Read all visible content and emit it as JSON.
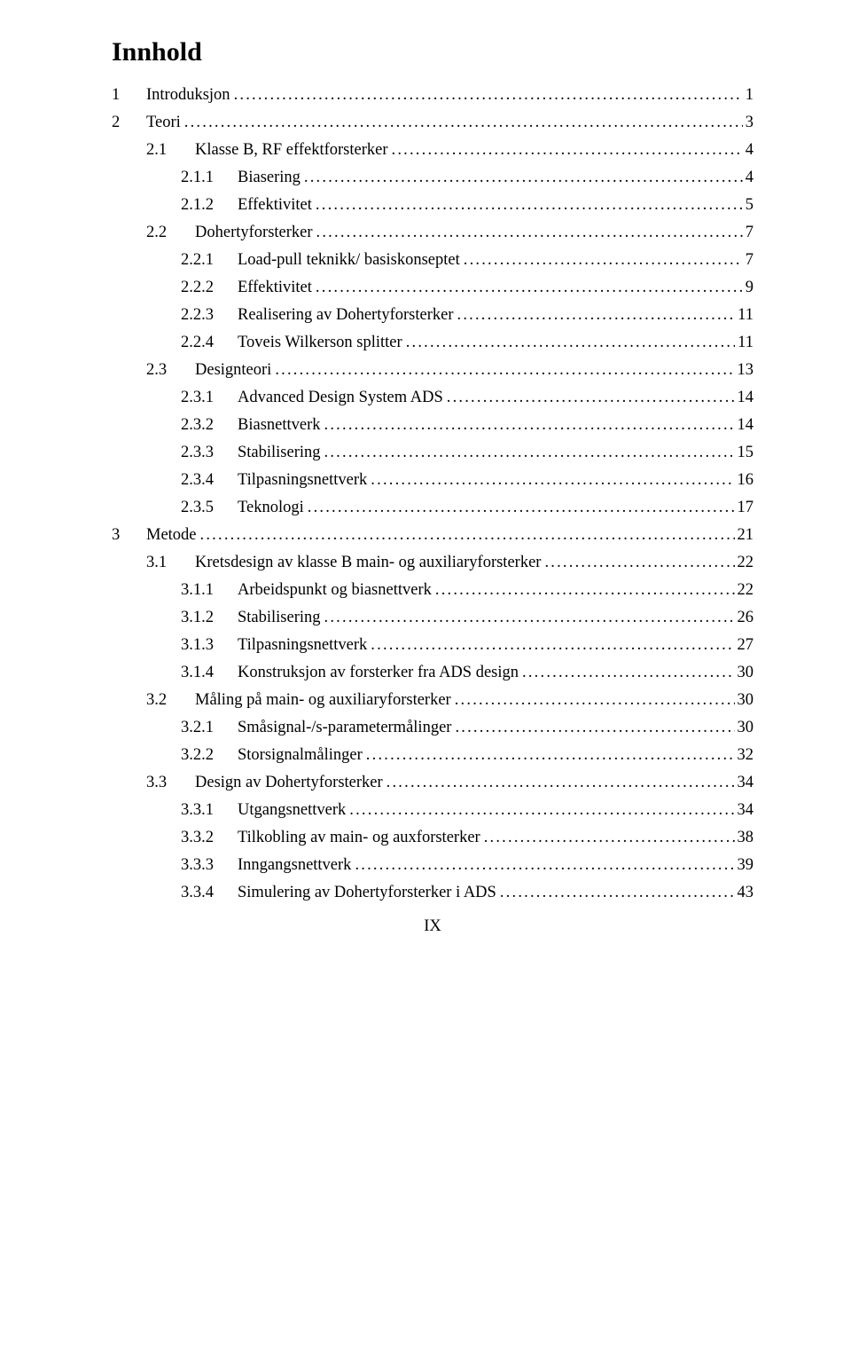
{
  "title": "Innhold",
  "footer": "IX",
  "entries": [
    {
      "level": 0,
      "num": "1",
      "label": "Introduksjon",
      "page": "1"
    },
    {
      "level": 0,
      "num": "2",
      "label": "Teori",
      "page": "3"
    },
    {
      "level": 1,
      "num": "2.1",
      "label": "Klasse B, RF effektforsterker",
      "page": "4"
    },
    {
      "level": 2,
      "num": "2.1.1",
      "label": "Biasering",
      "page": "4"
    },
    {
      "level": 2,
      "num": "2.1.2",
      "label": "Effektivitet",
      "page": "5"
    },
    {
      "level": 1,
      "num": "2.2",
      "label": "Dohertyforsterker",
      "page": "7"
    },
    {
      "level": 2,
      "num": "2.2.1",
      "label": "Load-pull teknikk/ basiskonseptet",
      "page": "7"
    },
    {
      "level": 2,
      "num": "2.2.2",
      "label": "Effektivitet",
      "page": "9"
    },
    {
      "level": 2,
      "num": "2.2.3",
      "label": "Realisering av Dohertyforsterker",
      "page": "11"
    },
    {
      "level": 2,
      "num": "2.2.4",
      "label": "Toveis Wilkerson splitter",
      "page": "11"
    },
    {
      "level": 1,
      "num": "2.3",
      "label": "Designteori",
      "page": "13"
    },
    {
      "level": 2,
      "num": "2.3.1",
      "label": "Advanced Design System ADS",
      "page": "14"
    },
    {
      "level": 2,
      "num": "2.3.2",
      "label": "Biasnettverk",
      "page": "14"
    },
    {
      "level": 2,
      "num": "2.3.3",
      "label": "Stabilisering",
      "page": "15"
    },
    {
      "level": 2,
      "num": "2.3.4",
      "label": "Tilpasningsnettverk",
      "page": "16"
    },
    {
      "level": 2,
      "num": "2.3.5",
      "label": "Teknologi",
      "page": "17"
    },
    {
      "level": 0,
      "num": "3",
      "label": "Metode",
      "page": "21"
    },
    {
      "level": 1,
      "num": "3.1",
      "label": "Kretsdesign av klasse B main- og auxiliaryforsterker",
      "page": "22"
    },
    {
      "level": 2,
      "num": "3.1.1",
      "label": "Arbeidspunkt og biasnettverk",
      "page": "22"
    },
    {
      "level": 2,
      "num": "3.1.2",
      "label": "Stabilisering",
      "page": "26"
    },
    {
      "level": 2,
      "num": "3.1.3",
      "label": "Tilpasningsnettverk",
      "page": "27"
    },
    {
      "level": 2,
      "num": "3.1.4",
      "label": "Konstruksjon av forsterker fra ADS design",
      "page": "30"
    },
    {
      "level": 1,
      "num": "3.2",
      "label": "Måling på main- og auxiliaryforsterker",
      "page": "30"
    },
    {
      "level": 2,
      "num": "3.2.1",
      "label": "Småsignal-/s-parametermålinger",
      "page": "30"
    },
    {
      "level": 2,
      "num": "3.2.2",
      "label": "Storsignalmålinger",
      "page": "32"
    },
    {
      "level": 1,
      "num": "3.3",
      "label": "Design av Dohertyforsterker",
      "page": "34"
    },
    {
      "level": 2,
      "num": "3.3.1",
      "label": "Utgangsnettverk",
      "page": "34"
    },
    {
      "level": 2,
      "num": "3.3.2",
      "label": "Tilkobling av main- og auxforsterker",
      "page": "38"
    },
    {
      "level": 2,
      "num": "3.3.3",
      "label": "Inngangsnettverk",
      "page": "39"
    },
    {
      "level": 2,
      "num": "3.3.4",
      "label": "Simulering av Dohertyforsterker i ADS",
      "page": "43"
    }
  ]
}
